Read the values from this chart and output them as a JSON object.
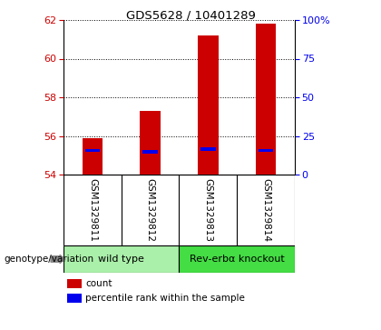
{
  "title": "GDS5628 / 10401289",
  "samples": [
    "GSM1329811",
    "GSM1329812",
    "GSM1329813",
    "GSM1329814"
  ],
  "count_values": [
    55.9,
    57.3,
    61.2,
    61.8
  ],
  "percentile_values": [
    55.25,
    55.18,
    55.32,
    55.25
  ],
  "bar_bottom": 54.0,
  "ylim_left": [
    54,
    62
  ],
  "yticks_left": [
    54,
    56,
    58,
    60,
    62
  ],
  "ylim_right": [
    0,
    100
  ],
  "yticks_right_vals": [
    0,
    25,
    50,
    75,
    100
  ],
  "yticks_right_labels": [
    "0",
    "25",
    "50",
    "75",
    "100%"
  ],
  "groups": [
    {
      "label": "wild type",
      "samples": [
        0,
        1
      ],
      "color": "#AAF0AA"
    },
    {
      "label": "Rev-erbα knockout",
      "samples": [
        2,
        3
      ],
      "color": "#44DD44"
    }
  ],
  "bar_color": "#CC0000",
  "percentile_color": "#0000EE",
  "left_tick_color": "#CC0000",
  "right_tick_color": "#0000EE",
  "grid_color": "#000000",
  "sample_bg": "#DDDDDD",
  "plot_bg": "#FFFFFF",
  "legend_items": [
    {
      "color": "#CC0000",
      "label": "count"
    },
    {
      "color": "#0000EE",
      "label": "percentile rank within the sample"
    }
  ],
  "bar_width": 0.35,
  "genotype_label": "genotype/variation"
}
